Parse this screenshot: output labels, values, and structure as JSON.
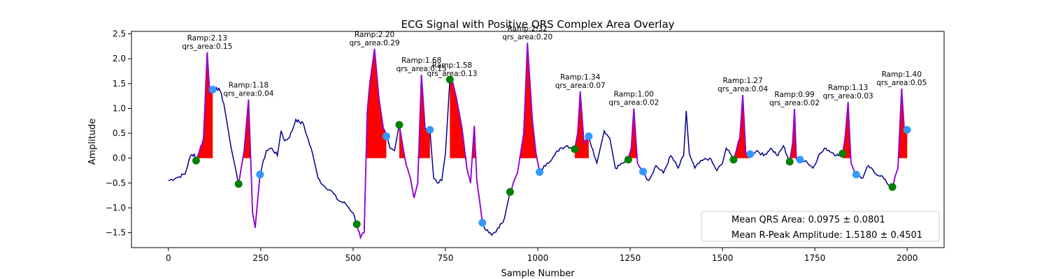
{
  "chart_data": {
    "type": "line",
    "title": "ECG Signal with Positive QRS Complex Area Overlay",
    "xlabel": "Sample Number",
    "ylabel": "Amplitude",
    "xlim": [
      -100,
      2100
    ],
    "ylim": [
      -1.8,
      2.55
    ],
    "x_ticks": [
      0,
      250,
      500,
      750,
      1000,
      1250,
      1500,
      1750,
      2000
    ],
    "y_ticks": [
      -1.5,
      -1.0,
      -0.5,
      0.0,
      0.5,
      1.0,
      1.5,
      2.0,
      2.5
    ],
    "grid": false,
    "colors": {
      "signal": "#00008b",
      "qrs_segment": "#9400d3",
      "area_fill": "#ff0000",
      "onset_marker": "#008000",
      "offset_marker": "#3399ff"
    },
    "beats": [
      {
        "onset": [
          75,
          -0.05
        ],
        "peak": [
          105,
          2.13
        ],
        "offset": [
          120,
          1.38
        ],
        "r_amp": "2.13",
        "qrs_area": "0.15"
      },
      {
        "onset": [
          190,
          -0.52
        ],
        "peak": [
          217,
          1.18
        ],
        "offset": [
          248,
          -0.33
        ],
        "r_amp": "1.18",
        "qrs_area": "0.04"
      },
      {
        "onset": [
          510,
          -1.33
        ],
        "peak": [
          558,
          2.2
        ],
        "offset": [
          590,
          0.44
        ],
        "r_amp": "2.20",
        "qrs_area": "0.29"
      },
      {
        "onset": [
          625,
          0.67
        ],
        "peak": [
          685,
          1.68
        ],
        "offset": [
          708,
          0.57
        ],
        "r_amp": "1.68",
        "qrs_area": "0.15"
      },
      {
        "onset": [
          762,
          1.58
        ],
        "peak": [
          768,
          1.58
        ],
        "offset": [
          850,
          -1.3
        ],
        "r_amp": "1.58",
        "qrs_area": "0.13"
      },
      {
        "onset": [
          925,
          -0.68
        ],
        "peak": [
          972,
          2.32
        ],
        "offset": [
          1005,
          -0.28
        ],
        "r_amp": "2.32",
        "qrs_area": "0.20"
      },
      {
        "onset": [
          1100,
          0.18
        ],
        "peak": [
          1115,
          1.34
        ],
        "offset": [
          1138,
          0.44
        ],
        "r_amp": "1.34",
        "qrs_area": "0.07"
      },
      {
        "onset": [
          1245,
          -0.03
        ],
        "peak": [
          1260,
          1.0
        ],
        "offset": [
          1285,
          -0.27
        ],
        "r_amp": "1.00",
        "qrs_area": "0.02"
      },
      {
        "onset": [
          1530,
          -0.03
        ],
        "peak": [
          1555,
          1.27
        ],
        "offset": [
          1575,
          0.08
        ],
        "r_amp": "1.27",
        "qrs_area": "0.04"
      },
      {
        "onset": [
          1682,
          -0.07
        ],
        "peak": [
          1695,
          0.99
        ],
        "offset": [
          1710,
          -0.03
        ],
        "r_amp": "0.99",
        "qrs_area": "0.02"
      },
      {
        "onset": [
          1825,
          0.09
        ],
        "peak": [
          1840,
          1.13
        ],
        "offset": [
          1862,
          -0.33
        ],
        "r_amp": "1.13",
        "qrs_area": "0.03"
      },
      {
        "onset": [
          1960,
          -0.58
        ],
        "peak": [
          1985,
          1.4
        ],
        "offset": [
          2000,
          0.57
        ],
        "r_amp": "1.40",
        "qrs_area": "0.05"
      }
    ],
    "signal_keypoints": [
      [
        0,
        -0.45
      ],
      [
        20,
        -0.4
      ],
      [
        45,
        -0.32
      ],
      [
        60,
        0.05
      ],
      [
        70,
        0.08
      ],
      [
        75,
        -0.05
      ],
      [
        95,
        0.4
      ],
      [
        105,
        2.13
      ],
      [
        112,
        1.3
      ],
      [
        120,
        1.38
      ],
      [
        130,
        1.42
      ],
      [
        140,
        1.35
      ],
      [
        150,
        1.1
      ],
      [
        160,
        0.65
      ],
      [
        170,
        0.2
      ],
      [
        180,
        -0.15
      ],
      [
        190,
        -0.52
      ],
      [
        205,
        0.15
      ],
      [
        217,
        1.18
      ],
      [
        228,
        -1.1
      ],
      [
        235,
        -1.4
      ],
      [
        248,
        -0.33
      ],
      [
        265,
        0.15
      ],
      [
        280,
        0.2
      ],
      [
        295,
        0.05
      ],
      [
        305,
        0.55
      ],
      [
        315,
        0.35
      ],
      [
        325,
        0.4
      ],
      [
        335,
        0.55
      ],
      [
        345,
        0.78
      ],
      [
        355,
        0.72
      ],
      [
        365,
        0.7
      ],
      [
        375,
        0.45
      ],
      [
        390,
        0.1
      ],
      [
        405,
        -0.4
      ],
      [
        420,
        -0.55
      ],
      [
        440,
        -0.65
      ],
      [
        460,
        -0.85
      ],
      [
        480,
        -0.92
      ],
      [
        500,
        -1.1
      ],
      [
        510,
        -1.33
      ],
      [
        520,
        -1.6
      ],
      [
        530,
        -1.5
      ],
      [
        538,
        0.9
      ],
      [
        545,
        1.5
      ],
      [
        558,
        2.2
      ],
      [
        570,
        1.2
      ],
      [
        582,
        0.6
      ],
      [
        590,
        0.44
      ],
      [
        600,
        0.2
      ],
      [
        612,
        0.15
      ],
      [
        625,
        0.67
      ],
      [
        640,
        0.0
      ],
      [
        655,
        -0.4
      ],
      [
        665,
        -0.8
      ],
      [
        675,
        -0.5
      ],
      [
        685,
        1.68
      ],
      [
        695,
        0.6
      ],
      [
        708,
        0.57
      ],
      [
        718,
        -0.4
      ],
      [
        728,
        -0.5
      ],
      [
        740,
        -0.45
      ],
      [
        750,
        0.1
      ],
      [
        762,
        1.58
      ],
      [
        768,
        1.58
      ],
      [
        780,
        1.2
      ],
      [
        795,
        0.6
      ],
      [
        808,
        -0.2
      ],
      [
        818,
        -0.5
      ],
      [
        828,
        0.65
      ],
      [
        835,
        -0.45
      ],
      [
        845,
        -1.0
      ],
      [
        850,
        -1.3
      ],
      [
        860,
        -1.45
      ],
      [
        875,
        -1.55
      ],
      [
        895,
        -1.4
      ],
      [
        910,
        -1.2
      ],
      [
        925,
        -0.68
      ],
      [
        945,
        -0.3
      ],
      [
        962,
        0.5
      ],
      [
        972,
        2.32
      ],
      [
        985,
        0.8
      ],
      [
        995,
        0.1
      ],
      [
        1005,
        -0.28
      ],
      [
        1025,
        -0.1
      ],
      [
        1045,
        0.05
      ],
      [
        1060,
        0.2
      ],
      [
        1080,
        0.25
      ],
      [
        1100,
        0.18
      ],
      [
        1108,
        0.5
      ],
      [
        1115,
        1.34
      ],
      [
        1125,
        0.3
      ],
      [
        1138,
        0.44
      ],
      [
        1160,
        -0.1
      ],
      [
        1180,
        0.55
      ],
      [
        1195,
        0.4
      ],
      [
        1210,
        -0.2
      ],
      [
        1230,
        -0.1
      ],
      [
        1245,
        -0.03
      ],
      [
        1253,
        0.2
      ],
      [
        1260,
        1.0
      ],
      [
        1270,
        -0.1
      ],
      [
        1285,
        -0.27
      ],
      [
        1300,
        -0.45
      ],
      [
        1320,
        -0.15
      ],
      [
        1340,
        -0.3
      ],
      [
        1360,
        0.05
      ],
      [
        1380,
        -0.2
      ],
      [
        1395,
        0.05
      ],
      [
        1402,
        0.95
      ],
      [
        1410,
        0.1
      ],
      [
        1425,
        -0.2
      ],
      [
        1445,
        -0.05
      ],
      [
        1465,
        0.0
      ],
      [
        1485,
        -0.25
      ],
      [
        1500,
        -0.1
      ],
      [
        1510,
        0.2
      ],
      [
        1520,
        0.1
      ],
      [
        1530,
        -0.03
      ],
      [
        1547,
        0.4
      ],
      [
        1555,
        1.27
      ],
      [
        1563,
        0.1
      ],
      [
        1575,
        0.08
      ],
      [
        1595,
        0.15
      ],
      [
        1612,
        0.05
      ],
      [
        1630,
        0.2
      ],
      [
        1650,
        0.05
      ],
      [
        1665,
        0.25
      ],
      [
        1675,
        0.05
      ],
      [
        1682,
        -0.07
      ],
      [
        1690,
        0.3
      ],
      [
        1695,
        0.99
      ],
      [
        1700,
        -0.02
      ],
      [
        1710,
        -0.03
      ],
      [
        1725,
        -0.05
      ],
      [
        1745,
        -0.2
      ],
      [
        1760,
        0.05
      ],
      [
        1780,
        0.2
      ],
      [
        1800,
        0.1
      ],
      [
        1815,
        0.05
      ],
      [
        1825,
        0.09
      ],
      [
        1832,
        0.4
      ],
      [
        1840,
        1.13
      ],
      [
        1848,
        -0.1
      ],
      [
        1862,
        -0.33
      ],
      [
        1880,
        -0.4
      ],
      [
        1895,
        -0.15
      ],
      [
        1912,
        -0.3
      ],
      [
        1930,
        -0.35
      ],
      [
        1945,
        -0.5
      ],
      [
        1960,
        -0.58
      ],
      [
        1975,
        -0.2
      ],
      [
        1985,
        1.4
      ],
      [
        1992,
        0.6
      ],
      [
        2000,
        0.57
      ]
    ],
    "legend": {
      "location": "lower right",
      "entries": [
        "Mean QRS Area: 0.0975 ± 0.0801",
        "Mean R-Peak Amplitude: 1.5180 ± 0.4501"
      ]
    }
  }
}
